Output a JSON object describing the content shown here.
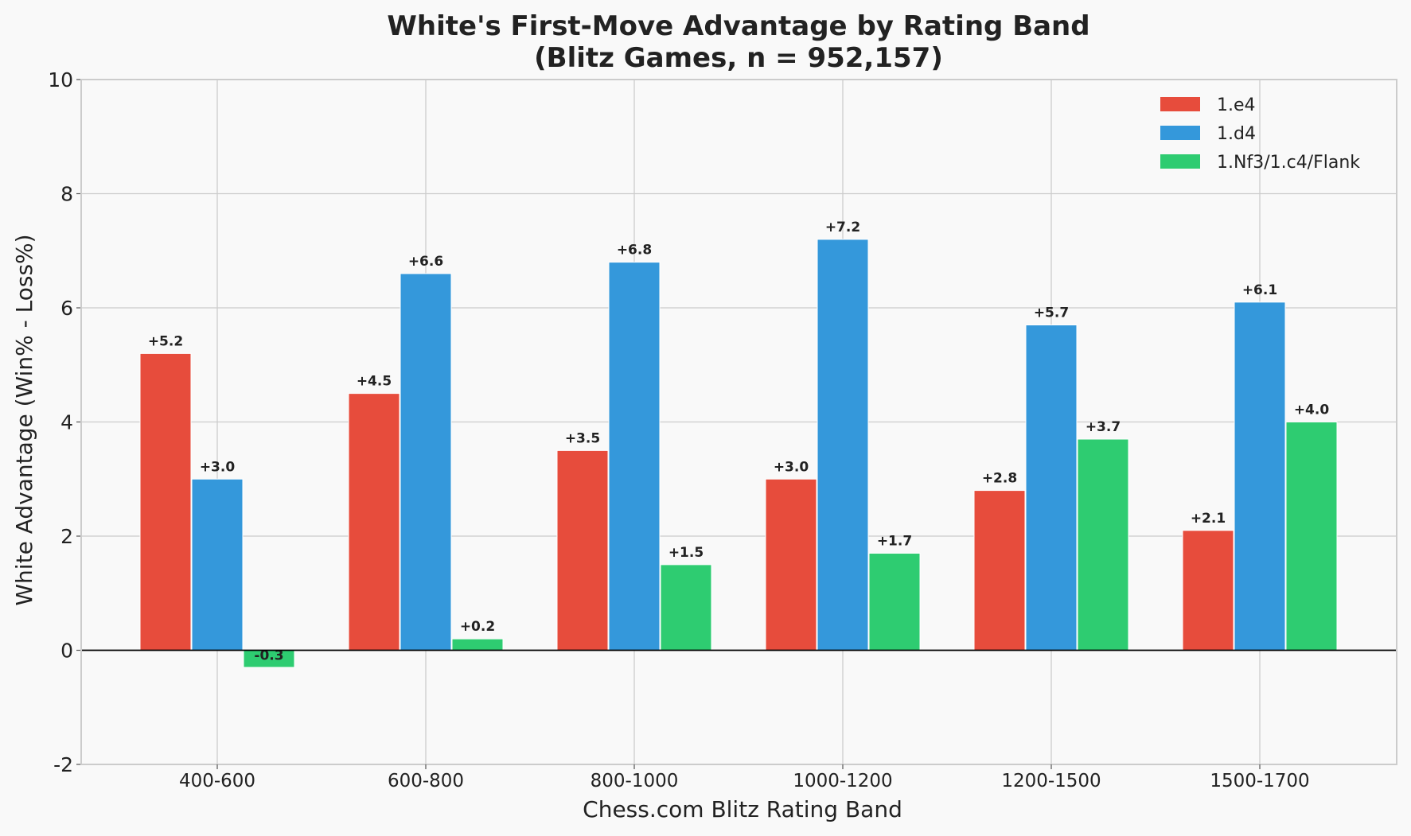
{
  "chart_data": {
    "type": "bar",
    "title_lines": [
      "White's First-Move Advantage by Rating Band",
      "(Blitz Games, n = 952,157)"
    ],
    "xlabel": "Chess.com Blitz Rating Band",
    "ylabel": "White Advantage (Win% - Loss%)",
    "categories": [
      "400-600",
      "600-800",
      "800-1000",
      "1000-1200",
      "1200-1500",
      "1500-1700"
    ],
    "series": [
      {
        "name": "1.e4",
        "color": "#e74c3c",
        "values": [
          5.2,
          4.5,
          3.5,
          3.0,
          2.8,
          2.1
        ],
        "labels": [
          "+5.2",
          "+4.5",
          "+3.5",
          "+3.0",
          "+2.8",
          "+2.1"
        ]
      },
      {
        "name": "1.d4",
        "color": "#3498db",
        "values": [
          3.0,
          6.6,
          6.8,
          7.2,
          5.7,
          6.1
        ],
        "labels": [
          "+3.0",
          "+6.6",
          "+6.8",
          "+7.2",
          "+5.7",
          "+6.1"
        ]
      },
      {
        "name": "1.Nf3/1.c4/Flank",
        "color": "#2ecc71",
        "values": [
          -0.3,
          0.2,
          1.5,
          1.7,
          3.7,
          4.0
        ],
        "labels": [
          "-0.3",
          "+0.2",
          "+1.5",
          "+1.7",
          "+3.7",
          "+4.0"
        ]
      }
    ],
    "ylim": [
      -2,
      10
    ],
    "yticks": [
      -2,
      0,
      2,
      4,
      6,
      8,
      10
    ],
    "ytick_labels": [
      "-2",
      "0",
      "2",
      "4",
      "6",
      "8",
      "10"
    ],
    "grid": true,
    "legend_position": "top-right"
  }
}
